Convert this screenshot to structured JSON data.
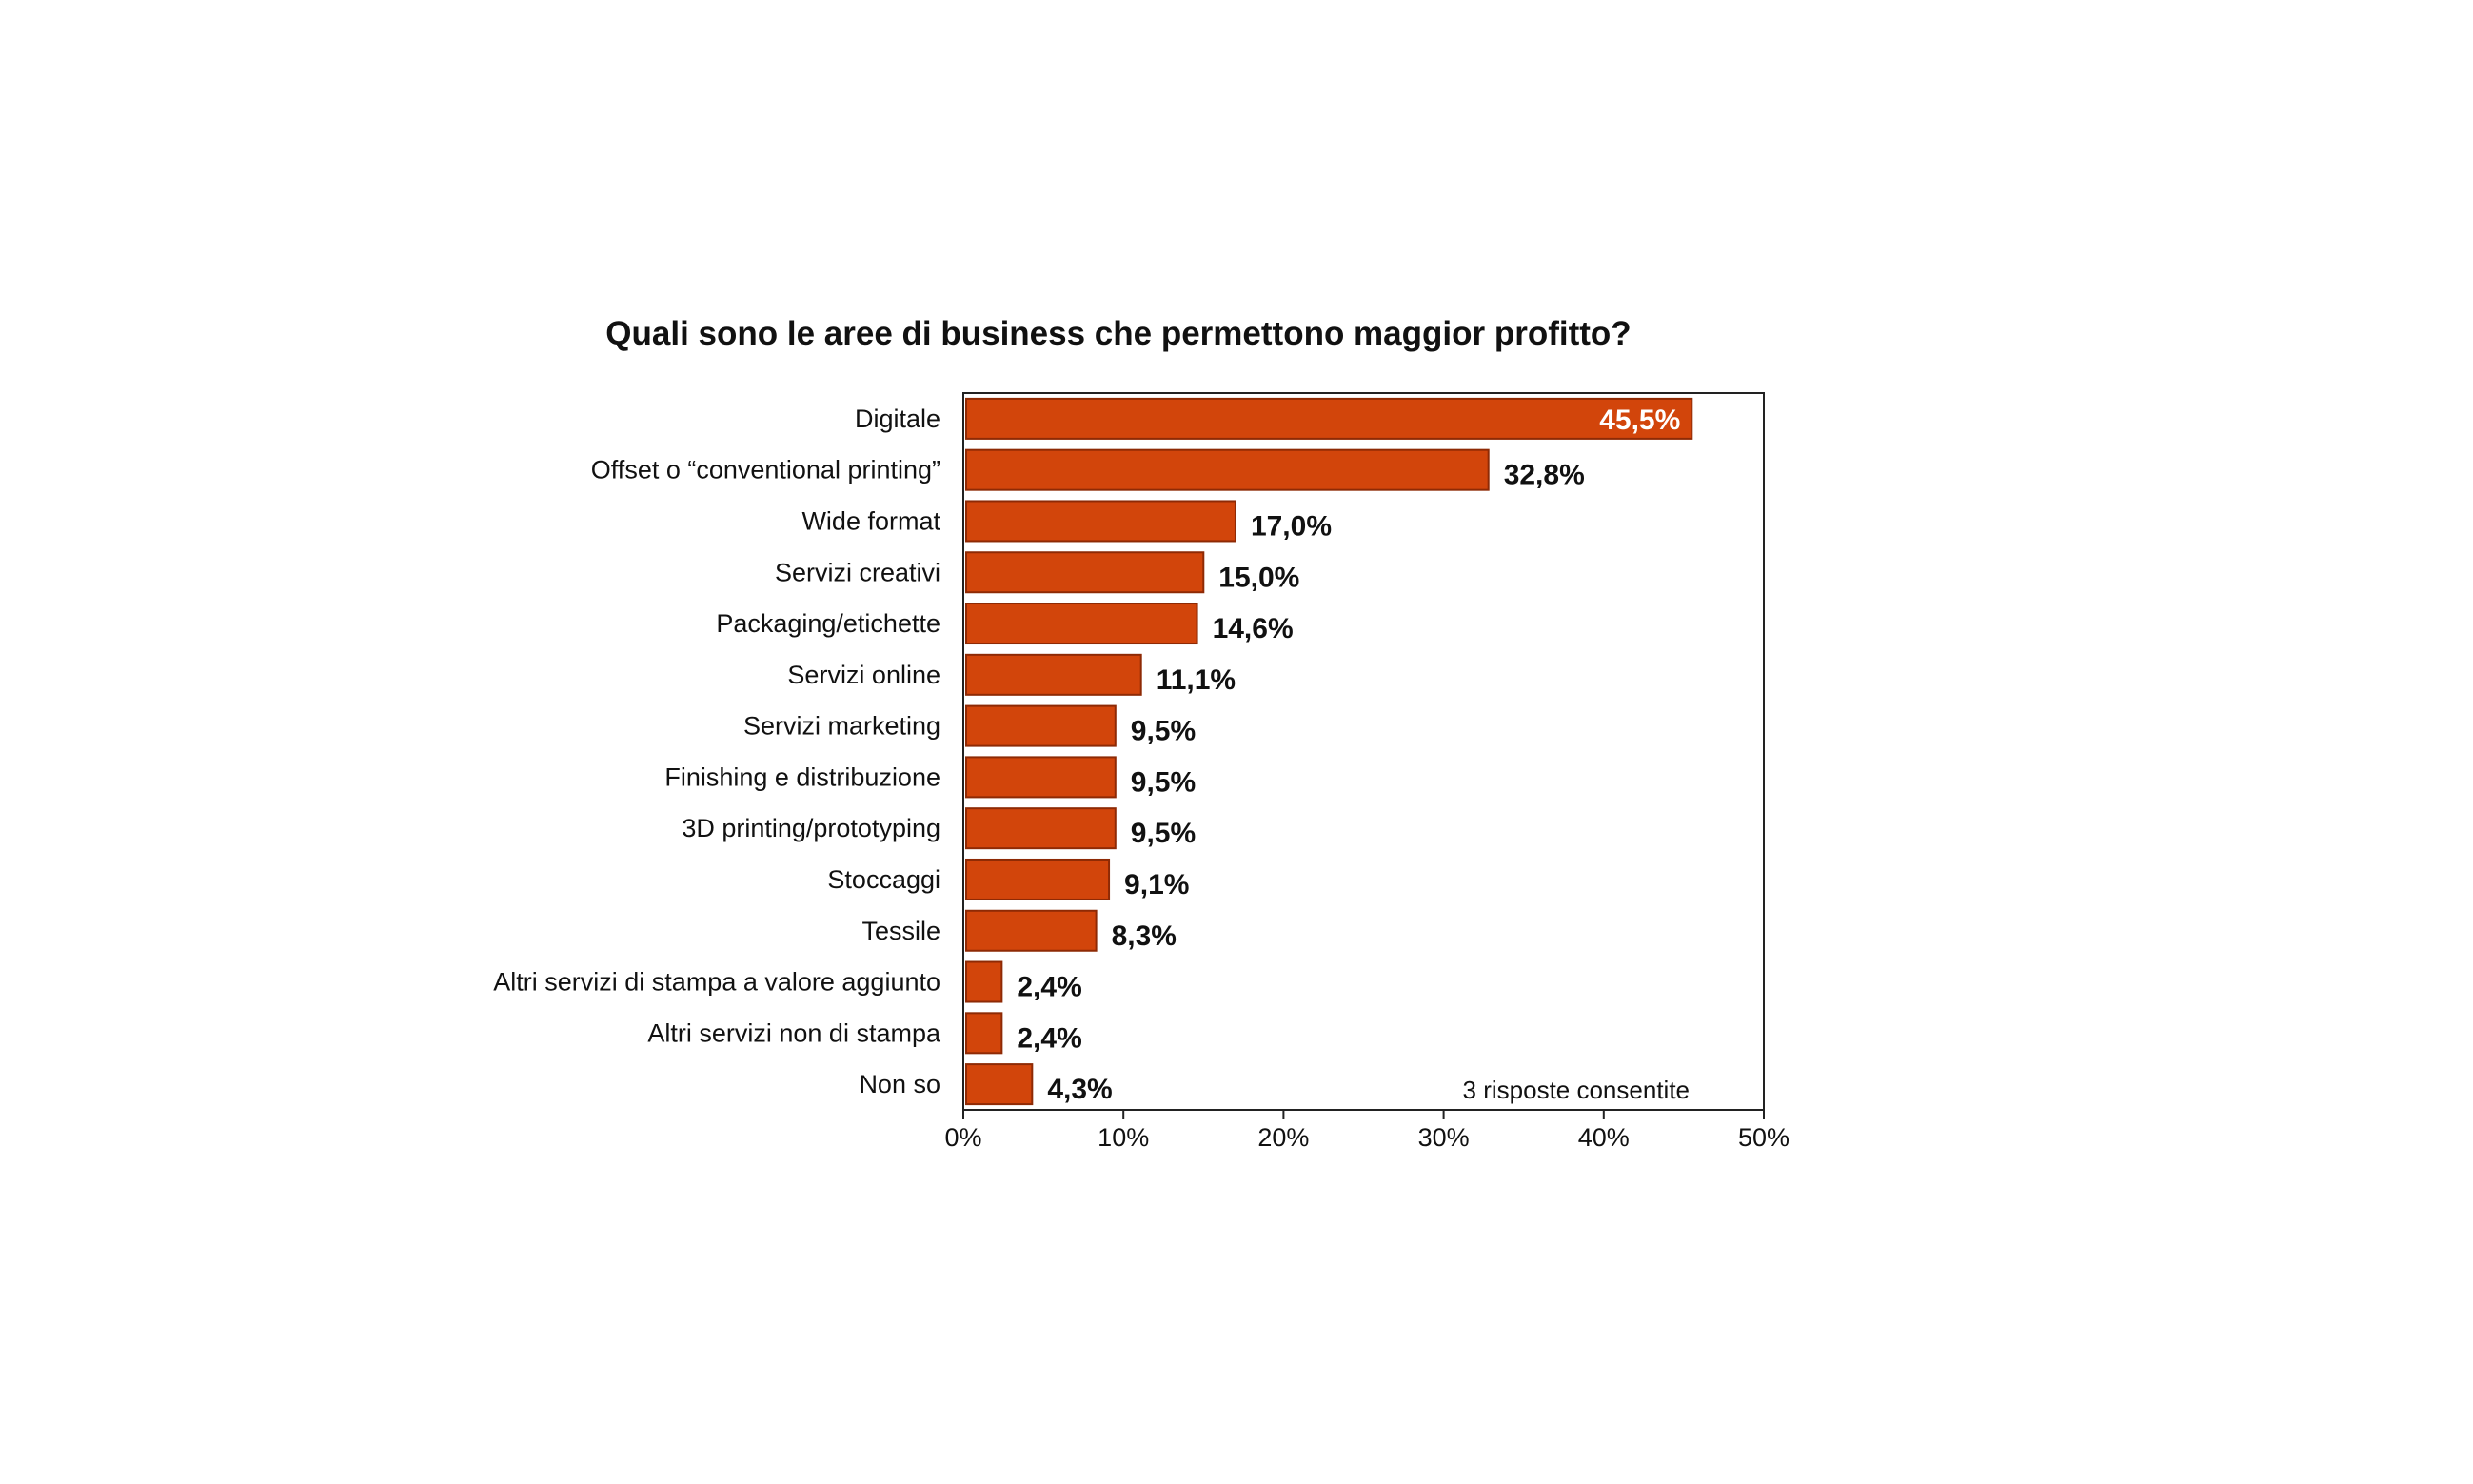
{
  "chart_data": {
    "type": "bar",
    "orientation": "horizontal",
    "title": "Quali sono le aree di business che permettono maggior profitto?",
    "categories": [
      "Digitale",
      "Offset o “conventional printing”",
      "Wide format",
      "Servizi creativi",
      "Packaging/etichette",
      "Servizi online",
      "Servizi marketing",
      "Finishing e distribuzione",
      "3D printing/prototyping",
      "Stoccaggi",
      "Tessile",
      "Altri servizi di stampa a valore aggiunto",
      "Altri servizi non di stampa",
      "Non so"
    ],
    "values": [
      45.5,
      32.8,
      17.0,
      15.0,
      14.6,
      11.1,
      9.5,
      9.5,
      9.5,
      9.1,
      8.3,
      2.4,
      2.4,
      4.3
    ],
    "value_labels": [
      "45,5%",
      "32,8%",
      "17,0%",
      "15,0%",
      "14,6%",
      "11,1%",
      "9,5%",
      "9,5%",
      "9,5%",
      "9,1%",
      "8,3%",
      "2,4%",
      "2,4%",
      "4,3%"
    ],
    "xlim": [
      0,
      50
    ],
    "x_ticks": [
      0,
      10,
      20,
      30,
      40,
      50
    ],
    "x_tick_labels": [
      "0%",
      "10%",
      "20%",
      "30%",
      "40%",
      "50%"
    ],
    "xlabel": "",
    "ylabel": "",
    "note": "3 risposte consentite",
    "grid": false,
    "legend": "none",
    "bar_color": "#d2450b",
    "bar_edge_color": "#8e2a05"
  }
}
